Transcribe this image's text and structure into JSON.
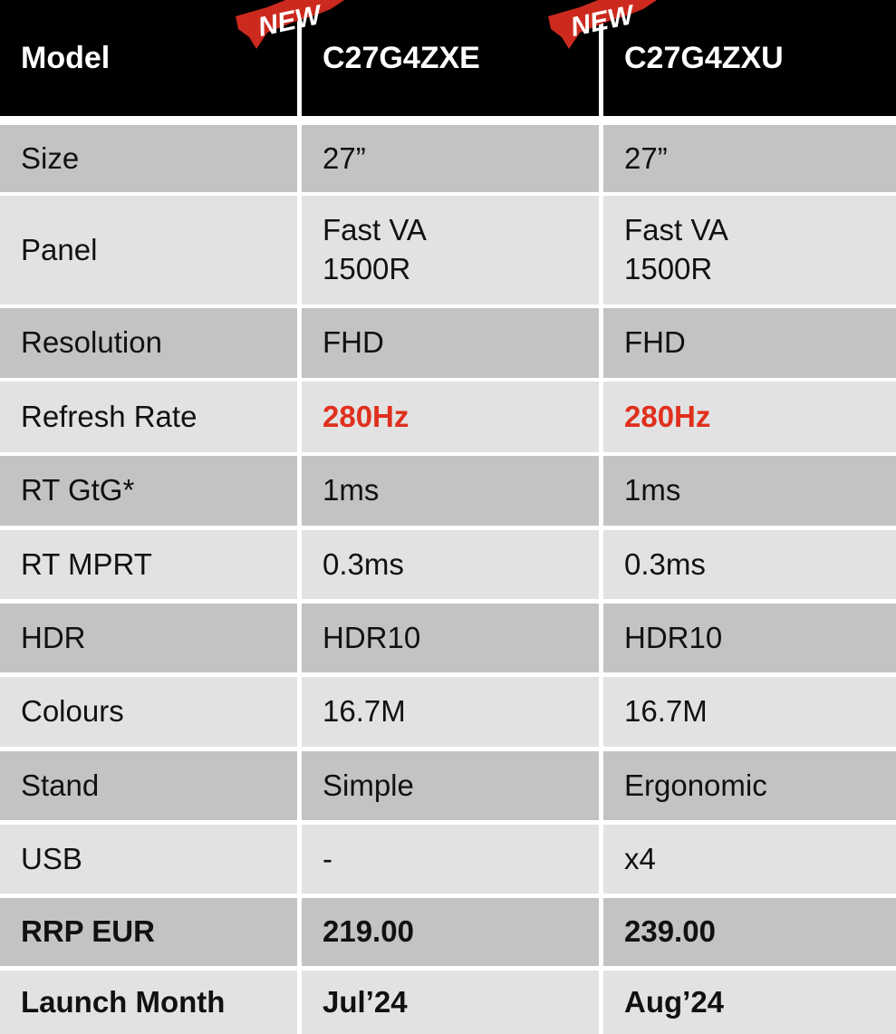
{
  "header": {
    "label": "Model",
    "models": [
      "C27G4ZXE",
      "C27G4ZXU"
    ],
    "badge": "NEW"
  },
  "colors": {
    "highlight": "#e0301e",
    "header_bg": "#000000",
    "badge": "#cc2a1e"
  },
  "rows": [
    {
      "label": "Size",
      "values": [
        "27”",
        "27”"
      ]
    },
    {
      "label": "Panel",
      "values": [
        "Fast VA\n1500R",
        "Fast VA\n1500R"
      ]
    },
    {
      "label": "Resolution",
      "values": [
        "FHD",
        "FHD"
      ]
    },
    {
      "label": "Refresh Rate",
      "values": [
        "280Hz",
        "280Hz"
      ],
      "highlight": true
    },
    {
      "label": "RT GtG*",
      "values": [
        "1ms",
        "1ms"
      ]
    },
    {
      "label": "RT MPRT",
      "values": [
        "0.3ms",
        "0.3ms"
      ]
    },
    {
      "label": "HDR",
      "values": [
        "HDR10",
        "HDR10"
      ]
    },
    {
      "label": "Colours",
      "values": [
        "16.7M",
        "16.7M"
      ]
    },
    {
      "label": "Stand",
      "values": [
        "Simple",
        "Ergonomic"
      ]
    },
    {
      "label": "USB",
      "values": [
        "-",
        "x4"
      ]
    },
    {
      "label": "RRP EUR",
      "values": [
        "219.00",
        "239.00"
      ],
      "bold": true
    },
    {
      "label": "Launch Month",
      "values": [
        "Jul’24",
        "Aug’24"
      ],
      "bold": true
    }
  ]
}
